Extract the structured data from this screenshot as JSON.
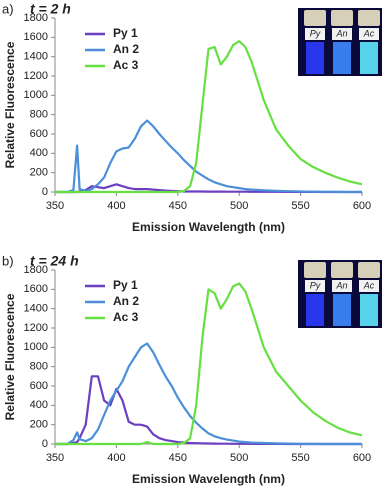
{
  "chart_data": [
    {
      "type": "line",
      "panel_label": "a)",
      "title": "t = 2 h",
      "xlabel": "Emission Wavelength (nm)",
      "ylabel": "Relative Fluorescence",
      "xlim": [
        350,
        600
      ],
      "ylim": [
        0,
        1800
      ],
      "xticks": [
        350,
        400,
        450,
        500,
        550,
        600
      ],
      "yticks": [
        0,
        200,
        400,
        600,
        800,
        1000,
        1200,
        1400,
        1600,
        1800
      ],
      "legend": "upper left",
      "inset_labels": [
        "Py",
        "An",
        "Ac"
      ],
      "x": [
        350,
        355,
        360,
        365,
        368,
        370,
        375,
        380,
        385,
        390,
        395,
        400,
        405,
        410,
        415,
        420,
        425,
        430,
        435,
        440,
        445,
        450,
        455,
        460,
        465,
        470,
        475,
        480,
        485,
        490,
        495,
        500,
        505,
        510,
        520,
        530,
        540,
        550,
        560,
        570,
        580,
        590,
        600
      ],
      "series": [
        {
          "name": "Py 1",
          "color": "#6b3fc1",
          "values": [
            0,
            0,
            0,
            0,
            0,
            5,
            20,
            60,
            50,
            40,
            60,
            80,
            60,
            40,
            30,
            30,
            30,
            25,
            20,
            15,
            10,
            8,
            5,
            5,
            5,
            5,
            4,
            4,
            4,
            3,
            3,
            3,
            3,
            2,
            2,
            2,
            1,
            1,
            1,
            0,
            0,
            0,
            0
          ]
        },
        {
          "name": "An 2",
          "color": "#4a8fd8",
          "values": [
            0,
            0,
            0,
            20,
            480,
            30,
            10,
            30,
            80,
            150,
            300,
            420,
            450,
            460,
            550,
            680,
            740,
            680,
            600,
            530,
            460,
            400,
            330,
            270,
            210,
            170,
            130,
            100,
            80,
            60,
            50,
            40,
            30,
            25,
            18,
            12,
            8,
            5,
            3,
            2,
            1,
            0,
            0
          ]
        },
        {
          "name": "Ac 3",
          "color": "#66e040",
          "values": [
            0,
            0,
            0,
            0,
            0,
            0,
            0,
            0,
            0,
            0,
            0,
            0,
            0,
            0,
            0,
            0,
            0,
            0,
            0,
            0,
            0,
            0,
            10,
            60,
            300,
            900,
            1480,
            1500,
            1320,
            1400,
            1520,
            1560,
            1500,
            1350,
            950,
            650,
            480,
            340,
            260,
            200,
            150,
            110,
            80
          ]
        }
      ]
    },
    {
      "type": "line",
      "panel_label": "b)",
      "title": "t = 24 h",
      "xlabel": "Emission Wavelength (nm)",
      "ylabel": "Relative Fluorescence",
      "xlim": [
        350,
        600
      ],
      "ylim": [
        0,
        1800
      ],
      "xticks": [
        350,
        400,
        450,
        500,
        550,
        600
      ],
      "yticks": [
        0,
        200,
        400,
        600,
        800,
        1000,
        1200,
        1400,
        1600,
        1800
      ],
      "legend": "upper left",
      "inset_labels": [
        "Py",
        "An",
        "Ac"
      ],
      "x": [
        350,
        355,
        360,
        365,
        368,
        370,
        375,
        380,
        385,
        390,
        395,
        400,
        405,
        410,
        415,
        420,
        425,
        430,
        435,
        440,
        445,
        450,
        455,
        460,
        465,
        470,
        475,
        480,
        485,
        490,
        495,
        500,
        505,
        510,
        520,
        530,
        540,
        550,
        560,
        570,
        580,
        590,
        600
      ],
      "series": [
        {
          "name": "Py 1",
          "color": "#6b3fc1",
          "values": [
            0,
            0,
            0,
            10,
            20,
            60,
            200,
            700,
            700,
            450,
            400,
            570,
            450,
            230,
            200,
            200,
            180,
            100,
            60,
            40,
            30,
            20,
            15,
            10,
            8,
            6,
            5,
            4,
            3,
            3,
            2,
            2,
            2,
            1,
            1,
            1,
            0,
            0,
            0,
            0,
            0,
            0,
            0
          ]
        },
        {
          "name": "An 2",
          "color": "#4a8fd8",
          "values": [
            0,
            0,
            0,
            40,
            120,
            50,
            30,
            60,
            150,
            300,
            450,
            550,
            650,
            800,
            900,
            1000,
            1040,
            950,
            820,
            700,
            600,
            480,
            380,
            290,
            220,
            160,
            110,
            80,
            60,
            45,
            35,
            25,
            20,
            15,
            10,
            6,
            4,
            2,
            1,
            0,
            0,
            0,
            0
          ]
        },
        {
          "name": "Ac 3",
          "color": "#66e040",
          "values": [
            0,
            0,
            0,
            0,
            0,
            0,
            0,
            0,
            0,
            0,
            0,
            0,
            0,
            0,
            0,
            0,
            20,
            0,
            0,
            0,
            0,
            0,
            10,
            60,
            400,
            1100,
            1600,
            1560,
            1400,
            1500,
            1630,
            1660,
            1580,
            1400,
            1000,
            750,
            600,
            450,
            330,
            240,
            170,
            120,
            90
          ]
        }
      ]
    }
  ]
}
